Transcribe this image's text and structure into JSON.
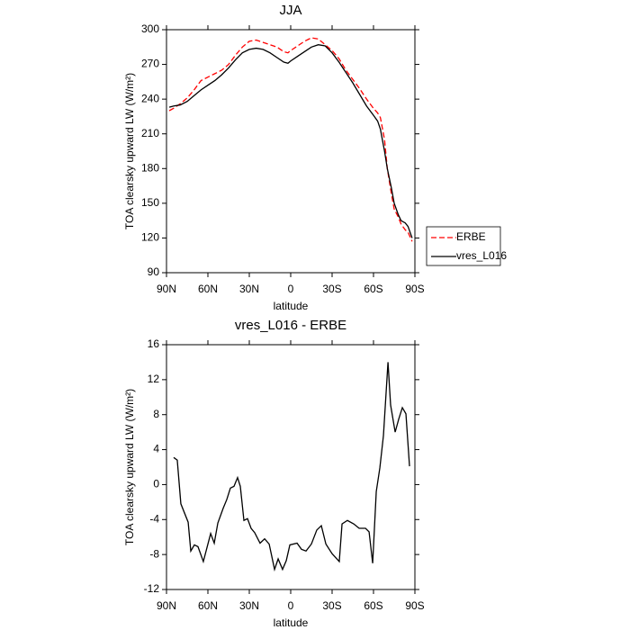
{
  "chart_data": [
    {
      "type": "line",
      "title": "JJA",
      "x_label": "latitude",
      "y_label": "TOA clearsky upward LW (W/m²)",
      "x": [
        88,
        85,
        80,
        75,
        70,
        65,
        60,
        55,
        50,
        45,
        40,
        35,
        30,
        25,
        20,
        15,
        10,
        5,
        2,
        0,
        -5,
        -10,
        -15,
        -20,
        -25,
        -30,
        -35,
        -40,
        -45,
        -50,
        -55,
        -60,
        -63,
        -65,
        -68,
        -70,
        -73,
        -75,
        -78,
        -80,
        -83,
        -85,
        -88
      ],
      "series": [
        {
          "name": "ERBE",
          "color": "#ff0000",
          "line_style": "dashed",
          "values": [
            230,
            232,
            236,
            241,
            248,
            256,
            259,
            262,
            265,
            270,
            278,
            285,
            290,
            291,
            289,
            287,
            285,
            281,
            280,
            282,
            286,
            290,
            293,
            292,
            287,
            282,
            275,
            265,
            257,
            249,
            240,
            232,
            228,
            224,
            205,
            180,
            158,
            145,
            138,
            132,
            127,
            125,
            117
          ]
        },
        {
          "name": "vres_L016",
          "color": "#000000",
          "line_style": "solid",
          "values": [
            233,
            234,
            235,
            238,
            243,
            248,
            252,
            256,
            261,
            267,
            274,
            280,
            283,
            284,
            283,
            280,
            276,
            272,
            271,
            273,
            277,
            281,
            285,
            287,
            286,
            280,
            272,
            263,
            254,
            244,
            234,
            226,
            221,
            214,
            195,
            180,
            163,
            150,
            140,
            135,
            133,
            130,
            120
          ]
        }
      ],
      "xlim": [
        90,
        -90
      ],
      "ylim": [
        90,
        300
      ],
      "xticks": [
        {
          "value": 90,
          "label": "90N"
        },
        {
          "value": 60,
          "label": "60N"
        },
        {
          "value": 30,
          "label": "30N"
        },
        0,
        {
          "value": -30,
          "label": "30S"
        },
        {
          "value": -60,
          "label": "60S"
        },
        {
          "value": -90,
          "label": "90S"
        }
      ],
      "yticks": [
        90,
        120,
        150,
        180,
        210,
        240,
        270,
        300
      ],
      "legend": "outside-right"
    },
    {
      "type": "line",
      "title": "vres_L016 - ERBE",
      "x_label": "latitude",
      "y_label": "TOA clearsky upward LW (W/m²)",
      "x": [
        84.8,
        82.2,
        79.6,
        74.3,
        72.4,
        69.8,
        67.2,
        63.3,
        58,
        55.4,
        52.8,
        48.9,
        46.3,
        43.7,
        41.1,
        38.5,
        36.5,
        33.9,
        31.3,
        28.7,
        26.1,
        22.2,
        18.9,
        15.6,
        11.7,
        9.1,
        5.9,
        3.2,
        0.6,
        -4.6,
        -7.8,
        -11.1,
        -15,
        -18.9,
        -22.2,
        -25.5,
        -30,
        -35.2,
        -37.2,
        -41.1,
        -45.7,
        -49.6,
        -54.2,
        -56.8,
        -59.4,
        -62,
        -64.6,
        -67.2,
        -70.5,
        -72.4,
        -75.7,
        -78.3,
        -80.9,
        -83.5,
        -86.1
      ],
      "series": [
        {
          "color": "#000000",
          "line_style": "solid",
          "values": [
            3.1,
            2.8,
            -2.2,
            -4.3,
            -7.6,
            -6.9,
            -7.1,
            -8.8,
            -5.6,
            -6.7,
            -4.4,
            -2.7,
            -1.7,
            -0.4,
            -0.2,
            0.8,
            -0.2,
            -4.1,
            -3.9,
            -5,
            -5.5,
            -6.7,
            -6.2,
            -6.8,
            -9.7,
            -8.5,
            -9.7,
            -8.7,
            -6.9,
            -6.7,
            -7.4,
            -7.6,
            -6.8,
            -5.2,
            -4.7,
            -6.8,
            -7.9,
            -8.8,
            -4.5,
            -4.1,
            -4.5,
            -5,
            -5,
            -5.4,
            -9,
            -0.8,
            1.9,
            5.6,
            14,
            9.1,
            6,
            7.5,
            8.8,
            8.1,
            2.1
          ]
        }
      ],
      "xlim": [
        90,
        -90
      ],
      "ylim": [
        -12,
        16
      ],
      "xticks": [
        {
          "value": 90,
          "label": "90N"
        },
        {
          "value": 60,
          "label": "60N"
        },
        {
          "value": 30,
          "label": "30N"
        },
        0,
        {
          "value": -30,
          "label": "30S"
        },
        {
          "value": -60,
          "label": "60S"
        },
        {
          "value": -90,
          "label": "90S"
        }
      ],
      "yticks": [
        -12,
        -8,
        -4,
        0,
        4,
        8,
        12,
        16
      ]
    }
  ]
}
